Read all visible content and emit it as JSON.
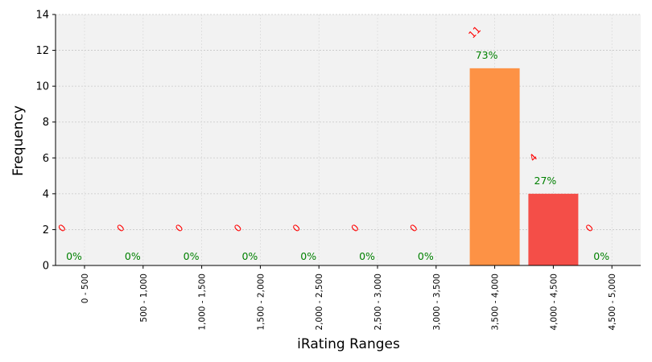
{
  "chart_data": {
    "type": "bar",
    "xlabel": "iRating Ranges",
    "ylabel": "Frequency",
    "ylim": [
      0,
      14
    ],
    "yticks": [
      "0",
      "2",
      "4",
      "6",
      "8",
      "10",
      "12",
      "14"
    ],
    "grid": true,
    "categories": [
      "0 - 500",
      "500 - 1,000",
      "1,000 - 1,500",
      "1,500 - 2,000",
      "2,000 - 2,500",
      "2,500 - 3,000",
      "3,000 - 3,500",
      "3,500 - 4,000",
      "4,000 - 4,500",
      "4,500 - 5,000"
    ],
    "values": [
      0,
      0,
      0,
      0,
      0,
      0,
      0,
      11,
      4,
      0
    ],
    "count_labels": [
      "0",
      "0",
      "0",
      "0",
      "0",
      "0",
      "0",
      "11",
      "4",
      "0"
    ],
    "percent_labels": [
      "0%",
      "0%",
      "0%",
      "0%",
      "0%",
      "0%",
      "0%",
      "73%",
      "27%",
      "0%"
    ],
    "bar_colors": [
      "#f44a44",
      "#f44a44",
      "#f44a44",
      "#f44a44",
      "#f44a44",
      "#f44a44",
      "#f44a44",
      "#fd9245",
      "#f44e48",
      "#f44a44"
    ],
    "plot_background": "#f2f2f2",
    "count_label_color": "#ff0000",
    "percent_label_color": "#008000"
  }
}
